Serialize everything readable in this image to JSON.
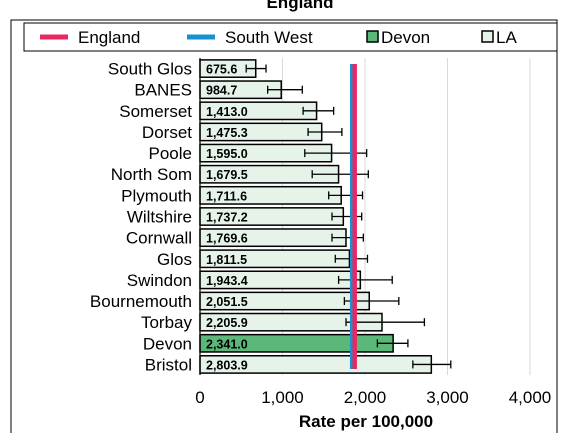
{
  "chart_data": {
    "type": "bar",
    "orientation": "horizontal",
    "title": "England",
    "xlabel": "Rate per 100,000",
    "ylabel": "",
    "xlim": [
      0,
      4000
    ],
    "x_ticks": [
      0,
      1000,
      2000,
      3000,
      4000
    ],
    "x_tick_labels": [
      "0",
      "1,000",
      "2,000",
      "3,000",
      "4,000"
    ],
    "grid": true,
    "legend_position": "top",
    "legend": [
      {
        "label": "England",
        "kind": "line",
        "color": "#e8295f"
      },
      {
        "label": "South West",
        "kind": "line",
        "color": "#1a8fd1"
      },
      {
        "label": "Devon",
        "kind": "box",
        "color": "#5cb87a"
      },
      {
        "label": "LA",
        "kind": "box",
        "color": "#e5f3e8"
      }
    ],
    "categories": [
      "South Glos",
      "BANES",
      "Somerset",
      "Dorset",
      "Poole",
      "North Som",
      "Plymouth",
      "Wiltshire",
      "Cornwall",
      "Glos",
      "Swindon",
      "Bournemouth",
      "Torbay",
      "Devon",
      "Bristol"
    ],
    "values": [
      675.6,
      984.7,
      1413.0,
      1475.3,
      1595.0,
      1679.5,
      1711.6,
      1737.2,
      1769.6,
      1811.5,
      1943.4,
      2051.5,
      2205.9,
      2341.0,
      2803.9
    ],
    "value_labels": [
      "675.6",
      "984.7",
      "1,413.0",
      "1,475.3",
      "1,595.0",
      "1,679.5",
      "1,711.6",
      "1,737.2",
      "1,769.6",
      "1,811.5",
      "1,943.4",
      "2,051.5",
      "2,205.9",
      "2,341.0",
      "2,803.9"
    ],
    "error_low": [
      560,
      820,
      1250,
      1310,
      1270,
      1360,
      1560,
      1600,
      1600,
      1640,
      1680,
      1750,
      1770,
      2150,
      2580
    ],
    "error_high": [
      800,
      1240,
      1620,
      1720,
      2020,
      2040,
      1970,
      1960,
      1980,
      2030,
      2330,
      2410,
      2720,
      2520,
      3040
    ],
    "highlight": "Devon",
    "reference_lines": [
      {
        "name": "England",
        "value": 1875,
        "color": "#e8295f"
      },
      {
        "name": "South West",
        "value": 1845,
        "color": "#1a8fd1"
      }
    ],
    "colors": {
      "bar": "#e5f3e8",
      "highlight": "#5cb87a",
      "bar_edge": "#000000",
      "grid": "#d9d9d9"
    }
  }
}
